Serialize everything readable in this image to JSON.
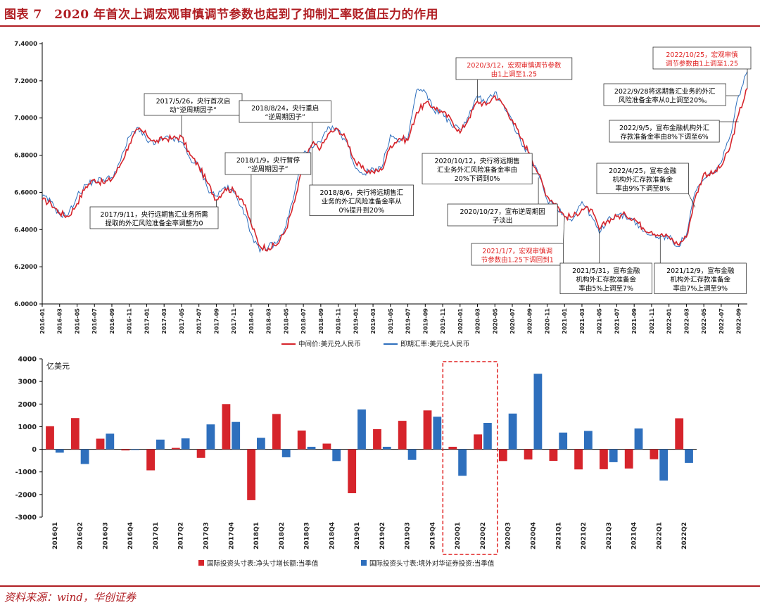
{
  "figure_title": "图表 7　2020 年首次上调宏观审慎调节参数也起到了抑制汇率贬值压力的作用",
  "source": "资料来源：wind，华创证券",
  "colors": {
    "brand": "#b01e23",
    "red_series": "#d6242b",
    "blue_series": "#2e6fbd",
    "highlight_box": "#e02020"
  },
  "chart_data": [
    {
      "type": "line",
      "ylim": [
        6.0,
        7.4
      ],
      "yticks": [
        "6.0000",
        "6.2000",
        "6.4000",
        "6.6000",
        "6.8000",
        "7.0000",
        "7.2000",
        "7.4000"
      ],
      "xticks": [
        "2016-01",
        "2016-03",
        "2016-05",
        "2016-07",
        "2016-09",
        "2016-11",
        "2017-01",
        "2017-03",
        "2017-05",
        "2017-07",
        "2017-09",
        "2017-11",
        "2018-01",
        "2018-03",
        "2018-05",
        "2018-07",
        "2018-09",
        "2018-11",
        "2019-01",
        "2019-03",
        "2019-05",
        "2019-07",
        "2019-09",
        "2019-11",
        "2020-01",
        "2020-03",
        "2020-05",
        "2020-07",
        "2020-09",
        "2020-11",
        "2021-01",
        "2021-03",
        "2021-05",
        "2021-07",
        "2021-09",
        "2021-11",
        "2022-01",
        "2022-03",
        "2022-05",
        "2022-07",
        "2022-09"
      ],
      "x_range_months": [
        "2016-01",
        "2022-10"
      ],
      "series": [
        {
          "name": "中间价:美元兑人民币",
          "color": "#d6242b",
          "points": [
            [
              "2016-01",
              6.56
            ],
            [
              "2016-02",
              6.54
            ],
            [
              "2016-03",
              6.49
            ],
            [
              "2016-04",
              6.47
            ],
            [
              "2016-05",
              6.54
            ],
            [
              "2016-06",
              6.63
            ],
            [
              "2016-07",
              6.67
            ],
            [
              "2016-08",
              6.65
            ],
            [
              "2016-09",
              6.67
            ],
            [
              "2016-10",
              6.75
            ],
            [
              "2016-11",
              6.86
            ],
            [
              "2016-12",
              6.94
            ],
            [
              "2017-01",
              6.91
            ],
            [
              "2017-02",
              6.87
            ],
            [
              "2017-03",
              6.89
            ],
            [
              "2017-04",
              6.89
            ],
            [
              "2017-05",
              6.9
            ],
            [
              "2017-06",
              6.8
            ],
            [
              "2017-07",
              6.74
            ],
            [
              "2017-08",
              6.65
            ],
            [
              "2017-09",
              6.56
            ],
            [
              "2017-10",
              6.62
            ],
            [
              "2017-11",
              6.61
            ],
            [
              "2017-12",
              6.56
            ],
            [
              "2018-01",
              6.43
            ],
            [
              "2018-02",
              6.31
            ],
            [
              "2018-03",
              6.3
            ],
            [
              "2018-04",
              6.32
            ],
            [
              "2018-05",
              6.4
            ],
            [
              "2018-06",
              6.55
            ],
            [
              "2018-07",
              6.75
            ],
            [
              "2018-08",
              6.86
            ],
            [
              "2018-09",
              6.84
            ],
            [
              "2018-10",
              6.92
            ],
            [
              "2018-11",
              6.94
            ],
            [
              "2018-12",
              6.88
            ],
            [
              "2019-01",
              6.76
            ],
            [
              "2019-02",
              6.72
            ],
            [
              "2019-03",
              6.71
            ],
            [
              "2019-04",
              6.72
            ],
            [
              "2019-05",
              6.85
            ],
            [
              "2019-06",
              6.89
            ],
            [
              "2019-07",
              6.88
            ],
            [
              "2019-08",
              7.03
            ],
            [
              "2019-09",
              7.08
            ],
            [
              "2019-10",
              7.06
            ],
            [
              "2019-11",
              7.03
            ],
            [
              "2019-12",
              6.99
            ],
            [
              "2020-01",
              6.92
            ],
            [
              "2020-02",
              7.0
            ],
            [
              "2020-03",
              7.09
            ],
            [
              "2020-04",
              7.07
            ],
            [
              "2020-05",
              7.12
            ],
            [
              "2020-06",
              7.07
            ],
            [
              "2020-07",
              6.99
            ],
            [
              "2020-08",
              6.89
            ],
            [
              "2020-09",
              6.81
            ],
            [
              "2020-10",
              6.7
            ],
            [
              "2020-11",
              6.58
            ],
            [
              "2020-12",
              6.54
            ],
            [
              "2021-01",
              6.47
            ],
            [
              "2021-02",
              6.47
            ],
            [
              "2021-03",
              6.51
            ],
            [
              "2021-04",
              6.51
            ],
            [
              "2021-05",
              6.4
            ],
            [
              "2021-06",
              6.45
            ],
            [
              "2021-07",
              6.47
            ],
            [
              "2021-08",
              6.48
            ],
            [
              "2021-09",
              6.46
            ],
            [
              "2021-10",
              6.41
            ],
            [
              "2021-11",
              6.39
            ],
            [
              "2021-12",
              6.37
            ],
            [
              "2022-01",
              6.36
            ],
            [
              "2022-02",
              6.32
            ],
            [
              "2022-03",
              6.36
            ],
            [
              "2022-04",
              6.57
            ],
            [
              "2022-05",
              6.7
            ],
            [
              "2022-06",
              6.7
            ],
            [
              "2022-07",
              6.74
            ],
            [
              "2022-08",
              6.84
            ],
            [
              "2022-09",
              7.02
            ],
            [
              "2022-10",
              7.16
            ]
          ]
        },
        {
          "name": "即期汇率:美元兑人民币",
          "color": "#2e6fbd",
          "points": [
            [
              "2016-01",
              6.58
            ],
            [
              "2016-02",
              6.55
            ],
            [
              "2016-03",
              6.48
            ],
            [
              "2016-04",
              6.48
            ],
            [
              "2016-05",
              6.58
            ],
            [
              "2016-06",
              6.64
            ],
            [
              "2016-07",
              6.66
            ],
            [
              "2016-08",
              6.67
            ],
            [
              "2016-09",
              6.68
            ],
            [
              "2016-10",
              6.77
            ],
            [
              "2016-11",
              6.9
            ],
            [
              "2016-12",
              6.95
            ],
            [
              "2017-01",
              6.88
            ],
            [
              "2017-02",
              6.86
            ],
            [
              "2017-03",
              6.89
            ],
            [
              "2017-04",
              6.89
            ],
            [
              "2017-05",
              6.87
            ],
            [
              "2017-06",
              6.78
            ],
            [
              "2017-07",
              6.74
            ],
            [
              "2017-08",
              6.62
            ],
            [
              "2017-09",
              6.58
            ],
            [
              "2017-10",
              6.63
            ],
            [
              "2017-11",
              6.6
            ],
            [
              "2017-12",
              6.52
            ],
            [
              "2018-01",
              6.38
            ],
            [
              "2018-02",
              6.28
            ],
            [
              "2018-03",
              6.31
            ],
            [
              "2018-04",
              6.33
            ],
            [
              "2018-05",
              6.42
            ],
            [
              "2018-06",
              6.6
            ],
            [
              "2018-07",
              6.81
            ],
            [
              "2018-08",
              6.84
            ],
            [
              "2018-09",
              6.87
            ],
            [
              "2018-10",
              6.95
            ],
            [
              "2018-11",
              6.93
            ],
            [
              "2018-12",
              6.87
            ],
            [
              "2019-01",
              6.73
            ],
            [
              "2019-02",
              6.7
            ],
            [
              "2019-03",
              6.73
            ],
            [
              "2019-04",
              6.73
            ],
            [
              "2019-05",
              6.91
            ],
            [
              "2019-06",
              6.87
            ],
            [
              "2019-07",
              6.89
            ],
            [
              "2019-08",
              7.15
            ],
            [
              "2019-09",
              7.14
            ],
            [
              "2019-10",
              7.04
            ],
            [
              "2019-11",
              7.03
            ],
            [
              "2019-12",
              6.96
            ],
            [
              "2020-01",
              6.94
            ],
            [
              "2020-02",
              7.01
            ],
            [
              "2020-03",
              7.12
            ],
            [
              "2020-04",
              7.08
            ],
            [
              "2020-05",
              7.14
            ],
            [
              "2020-06",
              7.07
            ],
            [
              "2020-07",
              6.98
            ],
            [
              "2020-08",
              6.87
            ],
            [
              "2020-09",
              6.79
            ],
            [
              "2020-10",
              6.7
            ],
            [
              "2020-11",
              6.56
            ],
            [
              "2020-12",
              6.53
            ],
            [
              "2021-01",
              6.47
            ],
            [
              "2021-02",
              6.46
            ],
            [
              "2021-03",
              6.55
            ],
            [
              "2021-04",
              6.48
            ],
            [
              "2021-05",
              6.38
            ],
            [
              "2021-06",
              6.46
            ],
            [
              "2021-07",
              6.48
            ],
            [
              "2021-08",
              6.47
            ],
            [
              "2021-09",
              6.45
            ],
            [
              "2021-10",
              6.39
            ],
            [
              "2021-11",
              6.37
            ],
            [
              "2021-12",
              6.36
            ],
            [
              "2022-01",
              6.36
            ],
            [
              "2022-02",
              6.31
            ],
            [
              "2022-03",
              6.37
            ],
            [
              "2022-04",
              6.6
            ],
            [
              "2022-05",
              6.67
            ],
            [
              "2022-06",
              6.7
            ],
            [
              "2022-07",
              6.76
            ],
            [
              "2022-08",
              6.9
            ],
            [
              "2022-09",
              7.12
            ],
            [
              "2022-10",
              7.25
            ]
          ]
        }
      ],
      "annotations": [
        {
          "lines": [
            "2017/5/26，央行首次启",
            "动“逆周期因子”"
          ],
          "color": "#000000",
          "target": [
            "2017-05",
            6.9
          ]
        },
        {
          "lines": [
            "2017/9/11，央行远期售汇业务所需",
            "提取的外汇风险准备金率调整为0"
          ],
          "color": "#000000",
          "target": [
            "2017-09",
            6.56
          ]
        },
        {
          "lines": [
            "2018/1/9，央行暂停",
            "“逆周期因子”"
          ],
          "color": "#000000",
          "target": [
            "2018-01",
            6.43
          ]
        },
        {
          "lines": [
            "2018/8/24，央行重启",
            "“逆周期因子”"
          ],
          "color": "#000000",
          "target": [
            "2018-08",
            6.86
          ]
        },
        {
          "lines": [
            "2018/8/6，央行将远期售汇",
            "业务的外汇风险准备金率从",
            "0%提升到20%"
          ],
          "color": "#000000",
          "target": [
            "2018-08",
            6.84
          ]
        },
        {
          "lines": [
            "2020/3/12，宏观审慎调节参数",
            "由1上调至1.25"
          ],
          "color": "#e02020",
          "target": [
            "2020-03",
            7.09
          ]
        },
        {
          "lines": [
            "2020/10/12，央行将远期售",
            "汇业务外汇风险准备金率由",
            "20%下调到0%"
          ],
          "color": "#000000",
          "target": [
            "2020-10",
            6.7
          ]
        },
        {
          "lines": [
            "2020/10/27，宣布逆周期因",
            "子淡出"
          ],
          "color": "#000000",
          "target": [
            "2020-10",
            6.68
          ]
        },
        {
          "lines": [
            "2021/1/7，宏观审慎调",
            "节参数由1.25下调回到1"
          ],
          "color": "#e02020",
          "target": [
            "2021-01",
            6.47
          ]
        },
        {
          "lines": [
            "2021/5/31，宣布金融",
            "机构外汇存款准备金",
            "率由5%上调至7%"
          ],
          "color": "#000000",
          "target": [
            "2021-05",
            6.4
          ]
        },
        {
          "lines": [
            "2021/12/9，宣布金融",
            "机构外汇存款准备金",
            "率由7%上调至9%"
          ],
          "color": "#000000",
          "target": [
            "2021-12",
            6.37
          ]
        },
        {
          "lines": [
            "2022/4/25，宣布金融",
            "机构外汇存款准备金",
            "率由9%下调至8%"
          ],
          "color": "#000000",
          "target": [
            "2022-04",
            6.52
          ]
        },
        {
          "lines": [
            "2022/9/5，宣布金融机构外汇",
            "存款准备金率由8%下调至6%"
          ],
          "color": "#000000",
          "target": [
            "2022-09",
            6.98
          ]
        },
        {
          "lines": [
            "2022/9/28将远期售汇业务的外汇",
            "风险准备金率从0上调至20%。"
          ],
          "color": "#000000",
          "target": [
            "2022-09",
            7.12
          ]
        },
        {
          "lines": [
            "2022/10/25，宏观审慎",
            "调节参数由1上调至1.25"
          ],
          "color": "#e02020",
          "target": [
            "2022-10",
            7.16
          ]
        }
      ]
    },
    {
      "type": "bar",
      "ylabel": "亿美元",
      "ylim": [
        -3000,
        4000
      ],
      "yticks": [
        "4000",
        "3000",
        "2000",
        "1000",
        "0",
        "-1000",
        "-2000",
        "-3000"
      ],
      "categories": [
        "2016Q1",
        "2016Q2",
        "2016Q3",
        "2016Q4",
        "2017Q1",
        "2017Q2",
        "2017Q3",
        "2017Q4",
        "2018Q1",
        "2018Q2",
        "2018Q3",
        "2018Q4",
        "2019Q1",
        "2019Q2",
        "2019Q3",
        "2019Q4",
        "2020Q1",
        "2020Q2",
        "2020Q3",
        "2020Q4",
        "2021Q1",
        "2021Q2",
        "2021Q3",
        "2021Q4",
        "2022Q1",
        "2022Q2"
      ],
      "series": [
        {
          "name": "国际投资头寸表:净头寸增长额:当季值",
          "color": "#d6242b",
          "values": [
            1020,
            1380,
            470,
            -50,
            -930,
            60,
            -380,
            2000,
            -2250,
            1560,
            830,
            250,
            -1940,
            890,
            1260,
            1720,
            110,
            660,
            -520,
            -450,
            -510,
            -890,
            -880,
            -850,
            -440,
            1370
          ]
        },
        {
          "name": "国际投资头寸表:境外对华证券投资:当季值",
          "color": "#2e6fbd",
          "values": [
            -150,
            -650,
            690,
            -30,
            430,
            480,
            1100,
            1210,
            510,
            -350,
            110,
            -520,
            1760,
            110,
            -470,
            1440,
            -1170,
            1170,
            1580,
            3340,
            740,
            810,
            -570,
            920,
            -1380,
            -600
          ]
        }
      ],
      "highlight_categories": [
        "2020Q1",
        "2020Q2"
      ]
    }
  ]
}
